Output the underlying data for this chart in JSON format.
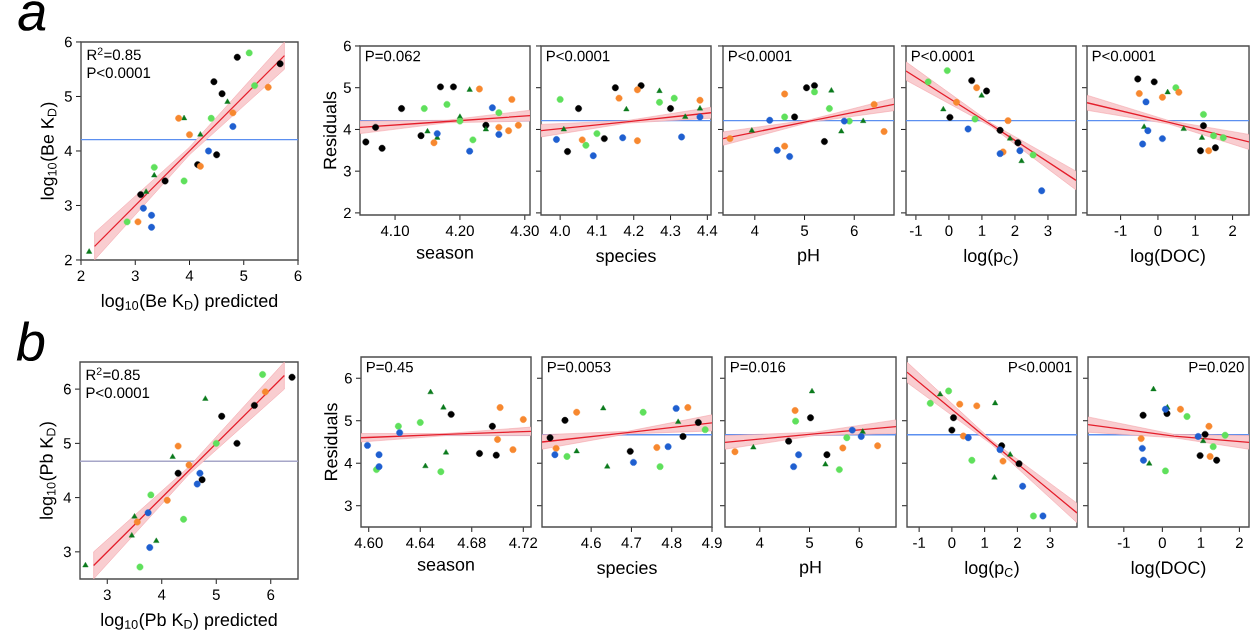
{
  "chart_data": [
    {
      "type": "scatter",
      "title": "a",
      "xlabel": "log$_{10}$(Be K$_{D}$) predicted",
      "ylabel": "log$_{10}$(Be K$_{D}$)",
      "xlim": [
        2,
        6
      ],
      "ylim": [
        2,
        6
      ],
      "xticks": [
        2,
        3,
        4,
        5,
        6
      ],
      "yticks": [
        2,
        3,
        4,
        5,
        6
      ],
      "annotations": [
        "R$^{2}$=0.85",
        "P<0.0001"
      ],
      "ref_lines": [
        {
          "axis": "y",
          "value": 4.21,
          "color": "#5b8ff0"
        }
      ],
      "series": [
        {
          "color": "#000000",
          "marker": "circle",
          "x": [
            4.88,
            5.67,
            4.45,
            4.5,
            3.1,
            4.6,
            4.15,
            3.55
          ],
          "values": [
            5.72,
            5.6,
            5.27,
            3.93,
            3.2,
            5.05,
            3.75,
            3.45
          ]
        },
        {
          "color": "#0a7a1c",
          "marker": "triangle",
          "x": [
            2.15,
            3.9,
            3.35,
            4.2,
            4.7,
            3.2
          ],
          "values": [
            2.15,
            4.6,
            3.55,
            4.3,
            4.9,
            3.25
          ]
        },
        {
          "color": "#5fe05c",
          "marker": "circle",
          "x": [
            5.1,
            2.85,
            3.35,
            3.9,
            4.4,
            5.2
          ],
          "values": [
            5.8,
            2.7,
            3.7,
            3.45,
            4.6,
            5.2
          ]
        },
        {
          "color": "#f7882f",
          "marker": "circle",
          "x": [
            3.8,
            3.05,
            4.2,
            5.45,
            4.0,
            4.8
          ],
          "values": [
            4.6,
            2.7,
            3.72,
            5.17,
            4.3,
            4.7
          ]
        },
        {
          "color": "#1f5fd0",
          "marker": "circle",
          "x": [
            3.3,
            3.15,
            3.3,
            4.8,
            4.35
          ],
          "values": [
            2.6,
            2.95,
            2.82,
            4.45,
            4.0
          ]
        },
        {
          "type": "line",
          "color": "#e41e2b",
          "x": [
            2.25,
            4,
            5.75
          ],
          "values": [
            2.25,
            4,
            5.75
          ],
          "lower": [
            2.0,
            3.93,
            5.5
          ],
          "upper": [
            2.5,
            4.07,
            6.0
          ]
        }
      ]
    },
    {
      "type": "scatter",
      "xlabel": "season",
      "ylabel": "Residuals",
      "xlim": [
        4.046,
        4.308
      ],
      "ylim": [
        1.95,
        6
      ],
      "xticks": [
        {
          "value": 4.1,
          "label": "4.10"
        },
        {
          "value": 4.2,
          "label": "4.20"
        },
        {
          "value": 4.3,
          "label": "4.30"
        }
      ],
      "yticks": [
        2,
        3,
        4,
        5,
        6
      ],
      "annotations": [
        "P=0.062"
      ],
      "ref_lines": [
        {
          "axis": "y",
          "value": 4.21,
          "color": "#5b8ff0"
        }
      ],
      "series": [
        {
          "color": "#000000",
          "marker": "circle",
          "x": [
            4.055,
            4.07,
            4.08,
            4.11,
            4.17,
            4.19,
            4.14,
            4.24
          ],
          "values": [
            3.7,
            4.05,
            3.55,
            4.5,
            5.02,
            5.02,
            3.85,
            4.1
          ]
        },
        {
          "color": "#0a7a1c",
          "marker": "triangle",
          "x": [
            4.165,
            4.215,
            4.2,
            4.24,
            4.15
          ],
          "values": [
            3.8,
            4.95,
            4.3,
            4.0,
            3.95
          ]
        },
        {
          "color": "#5fe05c",
          "marker": "circle",
          "x": [
            4.145,
            4.18,
            4.22,
            4.2,
            4.26
          ],
          "values": [
            4.5,
            4.6,
            3.75,
            4.2,
            4.4
          ]
        },
        {
          "color": "#f7882f",
          "marker": "circle",
          "x": [
            4.16,
            4.23,
            4.28,
            4.29,
            4.26,
            4.275
          ],
          "values": [
            3.68,
            4.97,
            4.72,
            4.1,
            4.05,
            3.97
          ]
        },
        {
          "color": "#1f5fd0",
          "marker": "circle",
          "x": [
            4.215,
            4.25,
            4.165,
            4.26
          ],
          "values": [
            3.48,
            4.52,
            3.9,
            3.88
          ]
        },
        {
          "type": "line",
          "color": "#e41e2b",
          "x": [
            4.046,
            4.18,
            4.308
          ],
          "values": [
            4.05,
            4.19,
            4.33
          ],
          "lower": [
            3.9,
            4.16,
            4.2
          ],
          "upper": [
            4.2,
            4.22,
            4.46
          ]
        }
      ]
    },
    {
      "type": "scatter",
      "xlabel": "species",
      "xlim": [
        3.948,
        4.41
      ],
      "ylim": [
        1.95,
        6
      ],
      "xticks": [
        {
          "value": 4,
          "label": "4.0"
        },
        4.1,
        4.2,
        4.3,
        4.4
      ],
      "yticks": [
        2,
        3,
        4,
        5,
        6
      ],
      "tick_labels": "x",
      "annotations": [
        "P<0.0001"
      ],
      "ref_lines": [
        {
          "axis": "y",
          "value": 4.21,
          "color": "#5b8ff0"
        }
      ],
      "series": [
        {
          "color": "#000000",
          "marker": "circle",
          "x": [
            4.02,
            4.22,
            4.15,
            4.12,
            4.05,
            4.3
          ],
          "values": [
            3.47,
            5.05,
            5.0,
            3.78,
            4.5,
            4.5
          ]
        },
        {
          "color": "#0a7a1c",
          "marker": "triangle",
          "x": [
            4.27,
            4.01,
            4.18,
            4.34,
            4.38
          ],
          "values": [
            4.92,
            4.0,
            4.48,
            4.3,
            4.5
          ]
        },
        {
          "color": "#5fe05c",
          "marker": "circle",
          "x": [
            4.0,
            4.07,
            4.27,
            4.31,
            4.1
          ],
          "values": [
            4.72,
            3.62,
            4.65,
            4.75,
            3.9
          ]
        },
        {
          "color": "#f7882f",
          "marker": "circle",
          "x": [
            4.21,
            4.16,
            4.21,
            4.38,
            4.06
          ],
          "values": [
            4.95,
            4.75,
            3.73,
            4.7,
            3.75
          ]
        },
        {
          "color": "#1f5fd0",
          "marker": "circle",
          "x": [
            4.09,
            4.33,
            3.99,
            4.17,
            4.38
          ],
          "values": [
            3.37,
            3.82,
            3.76,
            3.8,
            4.3
          ]
        },
        {
          "type": "line",
          "color": "#e41e2b",
          "x": [
            3.948,
            4.18,
            4.41
          ],
          "values": [
            3.97,
            4.18,
            4.4
          ],
          "lower": [
            3.82,
            4.15,
            4.27
          ],
          "upper": [
            4.12,
            4.21,
            4.53
          ]
        }
      ]
    },
    {
      "type": "scatter",
      "xlabel": "pH",
      "xlim": [
        3.36,
        6.8
      ],
      "ylim": [
        1.95,
        6
      ],
      "xticks": [
        4,
        5,
        6
      ],
      "yticks": [
        2,
        3,
        4,
        5,
        6
      ],
      "tick_labels": "x",
      "annotations": [
        "P<0.0001"
      ],
      "ref_lines": [
        {
          "axis": "y",
          "value": 4.21,
          "color": "#5b8ff0"
        }
      ],
      "series": [
        {
          "color": "#000000",
          "marker": "circle",
          "x": [
            5.04,
            5.4,
            5.2,
            4.8
          ],
          "values": [
            5.0,
            3.71,
            5.05,
            4.3
          ]
        },
        {
          "color": "#0a7a1c",
          "marker": "triangle",
          "x": [
            5.54,
            5.74,
            6.18,
            3.94
          ],
          "values": [
            4.93,
            3.95,
            4.2,
            3.97
          ]
        },
        {
          "color": "#5fe05c",
          "marker": "circle",
          "x": [
            4.6,
            5.2,
            5.5,
            5.9
          ],
          "values": [
            4.3,
            4.9,
            4.5,
            4.2
          ]
        },
        {
          "color": "#f7882f",
          "marker": "circle",
          "x": [
            3.5,
            4.6,
            6.4,
            6.6,
            4.6
          ],
          "values": [
            3.78,
            4.85,
            4.6,
            3.95,
            3.6
          ]
        },
        {
          "color": "#1f5fd0",
          "marker": "circle",
          "x": [
            4.7,
            4.3,
            4.45,
            5.8
          ],
          "values": [
            3.35,
            4.22,
            3.5,
            4.2
          ]
        },
        {
          "type": "line",
          "color": "#e41e2b",
          "x": [
            3.36,
            5.1,
            6.8
          ],
          "values": [
            3.78,
            4.2,
            4.6
          ],
          "lower": [
            3.62,
            4.17,
            4.45
          ],
          "upper": [
            3.94,
            4.23,
            4.75
          ]
        }
      ]
    },
    {
      "type": "scatter",
      "xlabel": "log(p$_{C}$)",
      "xlim": [
        -1.3,
        3.85
      ],
      "ylim": [
        1.95,
        6
      ],
      "xticks": [
        -1,
        0,
        1,
        2,
        3
      ],
      "yticks": [
        2,
        3,
        4,
        5,
        6
      ],
      "tick_labels": "x",
      "annotations": [
        "P<0.0001"
      ],
      "ref_lines": [
        {
          "axis": "y",
          "value": 4.21,
          "color": "#5b8ff0"
        }
      ],
      "series": [
        {
          "color": "#000000",
          "marker": "circle",
          "x": [
            0.69,
            2.09,
            0.03,
            1.55,
            1.14
          ],
          "values": [
            5.17,
            3.68,
            4.29,
            3.98,
            4.92
          ]
        },
        {
          "color": "#0a7a1c",
          "marker": "triangle",
          "x": [
            -0.17,
            0.99,
            2.2,
            1.85
          ],
          "values": [
            4.48,
            4.81,
            3.24,
            3.78
          ]
        },
        {
          "color": "#5fe05c",
          "marker": "circle",
          "x": [
            -0.63,
            -0.05,
            2.55,
            0.79
          ],
          "values": [
            5.14,
            5.41,
            3.39,
            4.25
          ]
        },
        {
          "color": "#f7882f",
          "marker": "circle",
          "x": [
            0.84,
            1.64,
            1.79,
            0.23
          ],
          "values": [
            5.0,
            3.46,
            4.21,
            4.65
          ]
        },
        {
          "color": "#1f5fd0",
          "marker": "circle",
          "x": [
            2.81,
            1.55,
            0.58,
            2.15
          ],
          "values": [
            2.53,
            3.42,
            4.01,
            3.49
          ]
        },
        {
          "type": "line",
          "color": "#e41e2b",
          "x": [
            -1.3,
            1.3,
            3.85
          ],
          "values": [
            5.4,
            4.1,
            2.78
          ],
          "lower": [
            5.18,
            4.06,
            2.55
          ],
          "upper": [
            5.62,
            4.14,
            3.0
          ]
        }
      ]
    },
    {
      "type": "scatter",
      "xlabel": "log(DOC)",
      "xlim": [
        -1.9,
        2.44
      ],
      "ylim": [
        1.95,
        6
      ],
      "xticks": [
        -1,
        0,
        1,
        2
      ],
      "yticks": [
        2,
        3,
        4,
        5,
        6
      ],
      "tick_labels": "x",
      "annotations": [
        "P<0.0001"
      ],
      "ref_lines": [
        {
          "axis": "y",
          "value": 4.21,
          "color": "#5b8ff0"
        }
      ],
      "series": [
        {
          "color": "#000000",
          "marker": "circle",
          "x": [
            -0.54,
            -0.1,
            1.54,
            1.14,
            1.22
          ],
          "values": [
            5.21,
            5.14,
            3.56,
            3.49,
            4.09
          ]
        },
        {
          "color": "#0a7a1c",
          "marker": "triangle",
          "x": [
            0.26,
            1.18,
            -0.37,
            0.69
          ],
          "values": [
            4.89,
            3.8,
            4.06,
            4.01
          ]
        },
        {
          "color": "#5fe05c",
          "marker": "circle",
          "x": [
            1.22,
            1.49,
            1.75,
            0.48
          ],
          "values": [
            4.36,
            3.85,
            3.8,
            5.0
          ]
        },
        {
          "color": "#f7882f",
          "marker": "circle",
          "x": [
            -0.5,
            0.56,
            1.36,
            0.12
          ],
          "values": [
            4.86,
            4.89,
            3.49,
            4.77
          ]
        },
        {
          "color": "#1f5fd0",
          "marker": "circle",
          "x": [
            -0.41,
            -0.27,
            -0.32,
            0.12
          ],
          "values": [
            3.65,
            3.97,
            4.66,
            3.78
          ]
        },
        {
          "type": "line",
          "color": "#e41e2b",
          "x": [
            -1.9,
            0.3,
            2.44
          ],
          "values": [
            4.64,
            4.17,
            3.7
          ],
          "lower": [
            4.46,
            4.13,
            3.52
          ],
          "upper": [
            4.82,
            4.21,
            3.88
          ]
        }
      ]
    },
    {
      "type": "scatter",
      "title": "b",
      "xlabel": "log$_{10}$(Pb K$_{D}$) predicted",
      "ylabel": "log$_{10}$(Pb K$_{D}$)",
      "xlim": [
        2.5,
        6.5
      ],
      "ylim": [
        2.5,
        6.5
      ],
      "xticks": [
        3,
        4,
        5,
        6
      ],
      "yticks": [
        3,
        4,
        5,
        6
      ],
      "annotations": [
        "R$^{2}$=0.85",
        "P<0.0001"
      ],
      "ref_lines": [
        {
          "axis": "y",
          "value": 4.67,
          "color": "#a6a6c8"
        }
      ],
      "series": [
        {
          "color": "#000000",
          "marker": "circle",
          "x": [
            6.39,
            5.38,
            4.74,
            5.1,
            5.7,
            4.3
          ],
          "values": [
            6.22,
            5.0,
            4.33,
            5.5,
            5.7,
            4.45
          ]
        },
        {
          "color": "#0a7a1c",
          "marker": "triangle",
          "x": [
            4.8,
            3.45,
            3.9,
            2.6,
            4.2,
            3.5
          ],
          "values": [
            5.82,
            3.3,
            3.2,
            2.75,
            4.75,
            3.65
          ]
        },
        {
          "color": "#5fe05c",
          "marker": "circle",
          "x": [
            5.85,
            3.6,
            4.4,
            3.8,
            5.0
          ],
          "values": [
            6.27,
            2.72,
            3.6,
            4.05,
            5.0
          ]
        },
        {
          "color": "#f7882f",
          "marker": "circle",
          "x": [
            4.3,
            3.55,
            4.5,
            5.9,
            4.1
          ],
          "values": [
            4.95,
            3.55,
            4.6,
            5.95,
            3.95
          ]
        },
        {
          "color": "#1f5fd0",
          "marker": "circle",
          "x": [
            3.78,
            4.65,
            3.75,
            4.7
          ],
          "values": [
            3.08,
            4.25,
            3.72,
            4.45
          ]
        },
        {
          "type": "line",
          "color": "#e41e2b",
          "x": [
            2.75,
            4.5,
            6.25
          ],
          "values": [
            2.75,
            4.5,
            6.25
          ],
          "lower": [
            2.5,
            4.43,
            6.0
          ],
          "upper": [
            3.0,
            4.57,
            6.5
          ]
        }
      ]
    },
    {
      "type": "scatter",
      "xlabel": "season",
      "ylabel": "Residuals",
      "xlim": [
        4.594,
        4.726
      ],
      "ylim": [
        2.5,
        6.5
      ],
      "xticks": [
        {
          "value": 4.6,
          "label": "4.60"
        },
        4.64,
        4.68,
        4.72
      ],
      "yticks": [
        3,
        4,
        5,
        6
      ],
      "annotations": [
        "P=0.45"
      ],
      "ref_lines": [
        {
          "axis": "y",
          "value": 4.67,
          "color": "#5b8ff0"
        }
      ],
      "series": [
        {
          "color": "#000000",
          "marker": "circle",
          "x": [
            4.664,
            4.686,
            4.699,
            4.696
          ],
          "values": [
            5.15,
            4.23,
            4.19,
            4.87
          ]
        },
        {
          "color": "#0a7a1c",
          "marker": "triangle",
          "x": [
            4.648,
            4.644,
            4.658,
            4.66
          ],
          "values": [
            5.67,
            3.93,
            5.31,
            4.25
          ]
        },
        {
          "color": "#5fe05c",
          "marker": "circle",
          "x": [
            4.606,
            4.656,
            4.64,
            4.623
          ],
          "values": [
            3.85,
            3.8,
            4.96,
            4.87
          ]
        },
        {
          "color": "#f7882f",
          "marker": "circle",
          "x": [
            4.702,
            4.72,
            4.712,
            4.7
          ],
          "values": [
            5.31,
            5.03,
            4.32,
            4.56
          ]
        },
        {
          "color": "#1f5fd0",
          "marker": "circle",
          "x": [
            4.608,
            4.599,
            4.624,
            4.608
          ],
          "values": [
            3.92,
            4.42,
            4.72,
            4.2
          ]
        },
        {
          "type": "line",
          "color": "#e41e2b",
          "x": [
            4.594,
            4.66,
            4.726
          ],
          "values": [
            4.6,
            4.68,
            4.75
          ],
          "lower": [
            4.5,
            4.65,
            4.65
          ],
          "upper": [
            4.7,
            4.7,
            4.85
          ]
        }
      ]
    },
    {
      "type": "scatter",
      "xlabel": "species",
      "xlim": [
        4.478,
        4.9
      ],
      "ylim": [
        2.5,
        6.5
      ],
      "xticks": [
        4.6,
        4.7,
        4.8,
        4.9
      ],
      "yticks": [
        3,
        4,
        5,
        6
      ],
      "tick_labels": "x",
      "annotations": [
        "P=0.0053"
      ],
      "ref_lines": [
        {
          "axis": "y",
          "value": 4.67,
          "color": "#5b8ff0"
        }
      ],
      "series": [
        {
          "color": "#000000",
          "marker": "circle",
          "x": [
            4.498,
            4.535,
            4.866,
            4.828,
            4.697
          ],
          "values": [
            4.6,
            5.01,
            4.96,
            4.63,
            4.28
          ]
        },
        {
          "color": "#0a7a1c",
          "marker": "triangle",
          "x": [
            4.63,
            4.64,
            4.816,
            4.564
          ],
          "values": [
            5.29,
            3.92,
            4.97,
            4.28
          ]
        },
        {
          "color": "#5fe05c",
          "marker": "circle",
          "x": [
            4.771,
            4.729,
            4.883,
            4.54
          ],
          "values": [
            3.92,
            5.2,
            4.79,
            4.16
          ]
        },
        {
          "color": "#f7882f",
          "marker": "circle",
          "x": [
            4.564,
            4.84,
            4.763,
            4.513
          ],
          "values": [
            5.2,
            5.31,
            4.37,
            4.35
          ]
        },
        {
          "color": "#1f5fd0",
          "marker": "circle",
          "x": [
            4.705,
            4.791,
            4.51,
            4.811
          ],
          "values": [
            4.02,
            4.39,
            4.2,
            5.29
          ]
        },
        {
          "type": "line",
          "color": "#e41e2b",
          "x": [
            4.478,
            4.69,
            4.9
          ],
          "values": [
            4.5,
            4.72,
            4.95
          ],
          "lower": [
            4.33,
            4.69,
            4.76
          ],
          "upper": [
            4.67,
            4.75,
            5.14
          ]
        }
      ]
    },
    {
      "type": "scatter",
      "xlabel": "pH",
      "xlim": [
        3.3,
        6.74
      ],
      "ylim": [
        2.5,
        6.5
      ],
      "xticks": [
        4,
        5,
        6
      ],
      "yticks": [
        3,
        4,
        5,
        6
      ],
      "tick_labels": "x",
      "annotations": [
        "P=0.016"
      ],
      "ref_lines": [
        {
          "axis": "y",
          "value": 4.67,
          "color": "#5b8ff0"
        }
      ],
      "series": [
        {
          "color": "#000000",
          "marker": "circle",
          "x": [
            5.35,
            4.58,
            5.02
          ],
          "values": [
            4.2,
            4.52,
            5.07
          ]
        },
        {
          "color": "#0a7a1c",
          "marker": "triangle",
          "x": [
            5.05,
            5.32,
            6.07,
            3.87
          ],
          "values": [
            5.69,
            3.97,
            4.74,
            4.37
          ]
        },
        {
          "color": "#5fe05c",
          "marker": "circle",
          "x": [
            5.6,
            5.75,
            4.72
          ],
          "values": [
            3.85,
            4.6,
            4.99
          ]
        },
        {
          "color": "#f7882f",
          "marker": "circle",
          "x": [
            3.5,
            6.37,
            4.71,
            5.67
          ],
          "values": [
            4.27,
            4.41,
            5.24,
            4.36
          ]
        },
        {
          "color": "#1f5fd0",
          "marker": "circle",
          "x": [
            4.68,
            4.78,
            6.04,
            5.86
          ],
          "values": [
            3.92,
            4.2,
            4.63,
            4.78
          ]
        },
        {
          "type": "line",
          "color": "#e41e2b",
          "x": [
            3.3,
            5.1,
            6.74
          ],
          "values": [
            4.49,
            4.69,
            4.86
          ],
          "lower": [
            4.33,
            4.65,
            4.7
          ],
          "upper": [
            4.65,
            4.73,
            5.02
          ]
        }
      ]
    },
    {
      "type": "scatter",
      "xlabel": "log(p$_{C}$)",
      "xlim": [
        -1.37,
        3.82
      ],
      "ylim": [
        2.5,
        6.5
      ],
      "xticks": [
        -1,
        0,
        1,
        2,
        3
      ],
      "yticks": [
        3,
        4,
        5,
        6
      ],
      "tick_labels": "x",
      "annotations": [
        "P<0.0001"
      ],
      "ref_lines": [
        {
          "axis": "y",
          "value": 4.67,
          "color": "#5b8ff0"
        }
      ],
      "series": [
        {
          "color": "#000000",
          "marker": "circle",
          "x": [
            0.0,
            2.05,
            0.05,
            1.52
          ],
          "values": [
            4.78,
            3.99,
            5.07,
            4.41
          ]
        },
        {
          "color": "#0a7a1c",
          "marker": "triangle",
          "x": [
            1.32,
            1.3,
            -0.36,
            1.78
          ],
          "values": [
            5.41,
            3.66,
            5.62,
            4.2
          ]
        },
        {
          "color": "#5fe05c",
          "marker": "circle",
          "x": [
            -0.66,
            0.61,
            2.49,
            -0.1
          ],
          "values": [
            5.41,
            4.07,
            2.76,
            5.7
          ]
        },
        {
          "color": "#f7882f",
          "marker": "circle",
          "x": [
            0.76,
            0.24,
            1.56,
            0.35
          ],
          "values": [
            5.35,
            5.39,
            4.05,
            4.64
          ]
        },
        {
          "color": "#1f5fd0",
          "marker": "circle",
          "x": [
            2.78,
            2.16,
            0.5,
            1.47
          ],
          "values": [
            2.76,
            3.46,
            4.6,
            4.32
          ]
        },
        {
          "type": "line",
          "color": "#e41e2b",
          "x": [
            -1.37,
            1.2,
            3.82
          ],
          "values": [
            6.14,
            4.5,
            2.83
          ],
          "lower": [
            5.9,
            4.45,
            2.6
          ],
          "upper": [
            6.38,
            4.55,
            3.06
          ]
        }
      ]
    },
    {
      "type": "scatter",
      "xlabel": "log(DOC)",
      "xlim": [
        -1.93,
        2.25
      ],
      "ylim": [
        2.5,
        6.5
      ],
      "xticks": [
        -1,
        0,
        1,
        2
      ],
      "yticks": [
        3,
        4,
        5,
        6
      ],
      "tick_labels": "x",
      "annotations": [
        "P=0.020"
      ],
      "ref_lines": [
        {
          "axis": "y",
          "value": 4.67,
          "color": "#5b8ff0"
        }
      ],
      "series": [
        {
          "color": "#000000",
          "marker": "circle",
          "x": [
            1.41,
            0.98,
            -0.5,
            1.11,
            0.12
          ],
          "values": [
            4.07,
            4.18,
            5.13,
            4.68,
            5.17
          ]
        },
        {
          "color": "#0a7a1c",
          "marker": "triangle",
          "x": [
            -0.23,
            -0.34,
            0.13,
            1.06
          ],
          "values": [
            5.74,
            3.99,
            5.31,
            4.52
          ]
        },
        {
          "color": "#5fe05c",
          "marker": "circle",
          "x": [
            0.08,
            1.63,
            1.32,
            0.64
          ],
          "values": [
            3.82,
            4.66,
            4.39,
            5.1
          ]
        },
        {
          "color": "#f7882f",
          "marker": "circle",
          "x": [
            0.47,
            1.24,
            1.21,
            -0.55
          ],
          "values": [
            5.27,
            4.16,
            4.87,
            4.58
          ]
        },
        {
          "color": "#1f5fd0",
          "marker": "circle",
          "x": [
            -0.52,
            -0.49,
            0.93,
            0.08
          ],
          "values": [
            4.35,
            4.07,
            4.63,
            5.27
          ]
        },
        {
          "type": "line",
          "color": "#e41e2b",
          "x": [
            -1.93,
            0.3,
            2.25
          ],
          "values": [
            4.91,
            4.64,
            4.49
          ],
          "lower": [
            4.73,
            4.6,
            4.33
          ],
          "upper": [
            5.09,
            4.68,
            4.65
          ]
        }
      ]
    }
  ]
}
